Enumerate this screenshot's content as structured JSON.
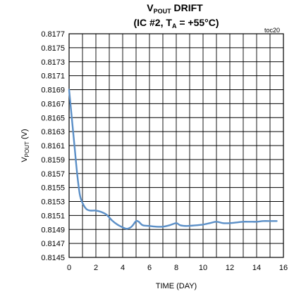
{
  "chart_data": {
    "type": "line",
    "title": {
      "line1": {
        "main1": "V",
        "sub1": "POUT",
        "main2": " DRIFT"
      },
      "line2": {
        "main1": "(IC #2, T",
        "sub1": "A",
        "main2": " = +55°C)"
      }
    },
    "tag": "toc20",
    "xlabel": "TIME (DAY)",
    "ylabel": {
      "main": "V",
      "sub": "POUT",
      "suffix": " (V)"
    },
    "xlim": [
      0,
      16
    ],
    "ylim": [
      0.8145,
      0.8177
    ],
    "x_ticks": [
      "0",
      "2",
      "4",
      "6",
      "8",
      "10",
      "12",
      "14",
      "16"
    ],
    "y_ticks": [
      "0.8177",
      "0.8175",
      "0.8173",
      "0.8171",
      "0.8169",
      "0.8167",
      "0.8165",
      "0.8163",
      "0.8161",
      "0.8159",
      "0.8157",
      "0.8155",
      "0.8153",
      "0.8151",
      "0.8149",
      "0.8147",
      "0.8145"
    ],
    "grid": true,
    "series": [
      {
        "color": "#5b8fc7",
        "points": [
          [
            0,
            0.8169
          ],
          [
            0.2,
            0.8165
          ],
          [
            0.4,
            0.8161
          ],
          [
            0.6,
            0.8157
          ],
          [
            0.8,
            0.8154
          ],
          [
            1.0,
            0.81528
          ],
          [
            1.3,
            0.81519
          ],
          [
            1.6,
            0.81517
          ],
          [
            2.0,
            0.81517
          ],
          [
            2.4,
            0.81515
          ],
          [
            2.8,
            0.81511
          ],
          [
            3.2,
            0.81503
          ],
          [
            3.6,
            0.81497
          ],
          [
            4.0,
            0.81493
          ],
          [
            4.3,
            0.81491
          ],
          [
            4.6,
            0.81493
          ],
          [
            4.8,
            0.81497
          ],
          [
            5.0,
            0.81502
          ],
          [
            5.2,
            0.81501
          ],
          [
            5.5,
            0.81496
          ],
          [
            6.0,
            0.81495
          ],
          [
            6.5,
            0.81494
          ],
          [
            7.0,
            0.81494
          ],
          [
            7.5,
            0.81496
          ],
          [
            8.0,
            0.81499
          ],
          [
            8.3,
            0.81496
          ],
          [
            8.8,
            0.81495
          ],
          [
            9.5,
            0.81496
          ],
          [
            10.0,
            0.81497
          ],
          [
            10.5,
            0.81499
          ],
          [
            11.0,
            0.81501
          ],
          [
            11.5,
            0.81499
          ],
          [
            12.0,
            0.81499
          ],
          [
            12.5,
            0.815
          ],
          [
            13.0,
            0.81501
          ],
          [
            13.5,
            0.81501
          ],
          [
            14.0,
            0.81501
          ],
          [
            14.5,
            0.81502
          ],
          [
            15.0,
            0.81502
          ],
          [
            15.5,
            0.81502
          ]
        ]
      }
    ]
  }
}
